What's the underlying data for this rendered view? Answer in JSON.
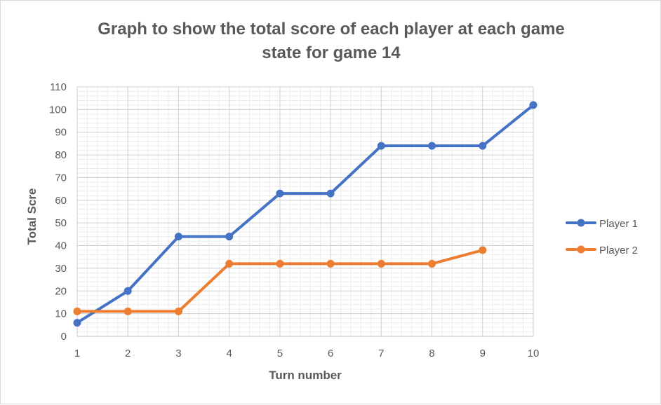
{
  "chart_data": {
    "type": "line",
    "title_line1": "Graph to show the total score of each player at each game",
    "title_line2": "state for game 14",
    "xlabel": "Turn number",
    "ylabel": "Total Scre",
    "x": [
      1,
      2,
      3,
      4,
      5,
      6,
      7,
      8,
      9,
      10
    ],
    "xlim": [
      1,
      10
    ],
    "ylim": [
      0,
      110
    ],
    "y_major_step": 10,
    "y_minor_step": 2,
    "grid": true,
    "legend_position": "right",
    "series": [
      {
        "name": "Player 1",
        "color": "#4472C4",
        "values": [
          6,
          20,
          44,
          44,
          63,
          63,
          84,
          84,
          84,
          102
        ]
      },
      {
        "name": "Player 2",
        "color": "#ED7D31",
        "values": [
          11,
          11,
          11,
          32,
          32,
          32,
          32,
          32,
          38,
          null
        ]
      }
    ]
  }
}
